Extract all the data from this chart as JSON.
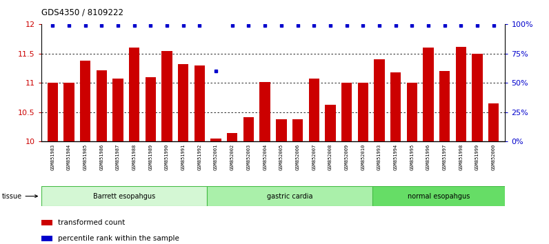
{
  "title": "GDS4350 / 8109222",
  "samples": [
    "GSM851983",
    "GSM851984",
    "GSM851985",
    "GSM851986",
    "GSM851987",
    "GSM851988",
    "GSM851989",
    "GSM851990",
    "GSM851991",
    "GSM851992",
    "GSM852001",
    "GSM852002",
    "GSM852003",
    "GSM852004",
    "GSM852005",
    "GSM852006",
    "GSM852007",
    "GSM852008",
    "GSM852009",
    "GSM852010",
    "GSM851993",
    "GSM851994",
    "GSM851995",
    "GSM851996",
    "GSM851997",
    "GSM851998",
    "GSM851999",
    "GSM852000"
  ],
  "bar_values": [
    11.0,
    11.0,
    11.38,
    11.22,
    11.08,
    11.6,
    11.1,
    11.55,
    11.32,
    11.3,
    10.05,
    10.14,
    10.41,
    11.02,
    10.38,
    10.38,
    11.08,
    10.63,
    11.0,
    11.0,
    11.4,
    11.18,
    11.0,
    11.6,
    11.2,
    11.62,
    11.5,
    10.65
  ],
  "percentile_values": [
    99,
    99,
    99,
    99,
    99,
    99,
    99,
    99,
    99,
    99,
    60,
    99,
    99,
    99,
    99,
    99,
    99,
    99,
    99,
    99,
    99,
    99,
    99,
    99,
    99,
    99,
    99,
    99
  ],
  "groups": [
    {
      "label": "Barrett esopahgus",
      "start": 0,
      "end": 10,
      "color": "#d4f7d4",
      "border": "#44bb44"
    },
    {
      "label": "gastric cardia",
      "start": 10,
      "end": 20,
      "color": "#aaf0aa",
      "border": "#44bb44"
    },
    {
      "label": "normal esopahgus",
      "start": 20,
      "end": 28,
      "color": "#66dd66",
      "border": "#44bb44"
    }
  ],
  "bar_color": "#cc0000",
  "percentile_color": "#0000cc",
  "ylim_left": [
    10,
    12
  ],
  "ylim_right": [
    0,
    100
  ],
  "yticks_left": [
    10,
    10.5,
    11,
    11.5,
    12
  ],
  "ytick_labels_left": [
    "10",
    "10.5",
    "11",
    "11.5",
    "12"
  ],
  "yticks_right": [
    0,
    25,
    50,
    75,
    100
  ],
  "ytick_labels_right": [
    "0%",
    "25%",
    "50%",
    "75%",
    "100%"
  ],
  "grid_values": [
    10.5,
    11.0,
    11.5
  ],
  "background_color": "#ffffff",
  "xticklabel_bg": "#c8c8c8"
}
